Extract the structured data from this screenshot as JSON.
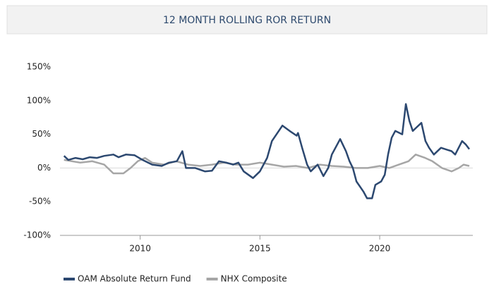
{
  "chart_data": {
    "type": "line",
    "title": "12 MONTH ROLLING ROR RETURN",
    "xlim": [
      2006.8,
      2023.74
    ],
    "xticks": [
      2010,
      2015,
      2020
    ],
    "ylim": [
      -100,
      150
    ],
    "yticks": [
      {
        "value": -100,
        "label": "-100%"
      },
      {
        "value": -50,
        "label": "-50%"
      },
      {
        "value": 0,
        "label": "0%"
      },
      {
        "value": 50,
        "label": "50%"
      },
      {
        "value": 100,
        "label": "100%"
      },
      {
        "value": 150,
        "label": "150%"
      }
    ],
    "legend": "bottom-left",
    "series": [
      {
        "name": "OAM Absolute Return Fund",
        "color": "#2c4870",
        "x": [
          2006.82,
          2007.0,
          2007.3,
          2007.6,
          2007.9,
          2008.2,
          2008.5,
          2008.88,
          2009.1,
          2009.4,
          2009.76,
          2010.1,
          2010.5,
          2010.9,
          2011.2,
          2011.53,
          2011.76,
          2011.91,
          2012.3,
          2012.7,
          2013.0,
          2013.29,
          2013.6,
          2013.88,
          2014.1,
          2014.32,
          2014.71,
          2015.0,
          2015.3,
          2015.5,
          2015.94,
          2016.24,
          2016.53,
          2016.59,
          2016.76,
          2016.97,
          2017.12,
          2017.41,
          2017.65,
          2017.85,
          2018.0,
          2018.35,
          2018.59,
          2018.74,
          2018.88,
          2019.03,
          2019.32,
          2019.47,
          2019.68,
          2019.82,
          2020.06,
          2020.21,
          2020.35,
          2020.5,
          2020.65,
          2020.94,
          2021.09,
          2021.24,
          2021.38,
          2021.53,
          2021.74,
          2021.91,
          2022.06,
          2022.26,
          2022.56,
          2023.0,
          2023.15,
          2023.44,
          2023.59,
          2023.74
        ],
        "values": [
          18,
          12,
          15,
          13,
          16,
          15,
          18,
          20,
          16,
          20,
          19,
          12,
          5,
          3,
          8,
          10,
          25,
          0,
          0,
          -5,
          -4,
          10,
          8,
          5,
          8,
          -5,
          -15,
          -5,
          15,
          40,
          63,
          55,
          48,
          52,
          30,
          5,
          -5,
          5,
          -12,
          0,
          20,
          43,
          25,
          10,
          0,
          -20,
          -35,
          -45,
          -45,
          -25,
          -20,
          -10,
          20,
          45,
          55,
          50,
          95,
          70,
          55,
          60,
          67,
          40,
          30,
          20,
          30,
          25,
          20,
          40,
          35,
          28
        ]
      },
      {
        "name": "NHX Composite",
        "color": "#a6a6a6",
        "x": [
          2006.82,
          2007.5,
          2008.0,
          2008.5,
          2008.88,
          2009.3,
          2009.6,
          2009.9,
          2010.2,
          2010.5,
          2011.0,
          2011.5,
          2012.0,
          2012.5,
          2013.0,
          2013.5,
          2014.0,
          2014.5,
          2015.0,
          2015.5,
          2016.0,
          2016.5,
          2017.0,
          2017.5,
          2018.0,
          2018.5,
          2019.0,
          2019.5,
          2020.0,
          2020.4,
          2020.8,
          2021.2,
          2021.5,
          2021.9,
          2022.2,
          2022.6,
          2023.0,
          2023.3,
          2023.5,
          2023.74
        ],
        "values": [
          12,
          8,
          10,
          5,
          -8,
          -8,
          0,
          10,
          15,
          8,
          5,
          10,
          5,
          3,
          5,
          8,
          5,
          5,
          8,
          5,
          2,
          3,
          0,
          5,
          3,
          2,
          0,
          0,
          3,
          0,
          5,
          10,
          20,
          15,
          10,
          0,
          -5,
          0,
          5,
          3
        ]
      }
    ]
  }
}
